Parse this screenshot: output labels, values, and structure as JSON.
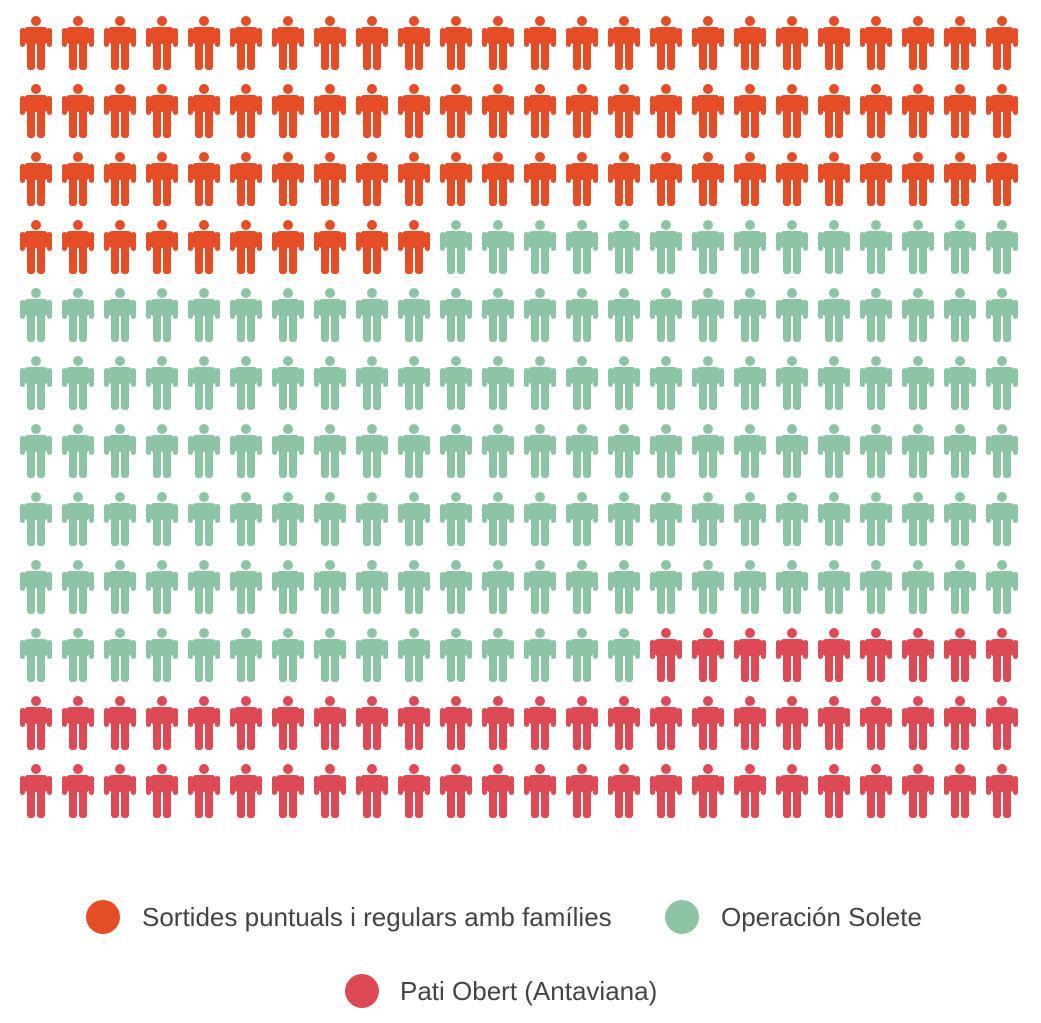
{
  "chart_data": {
    "type": "pictogram",
    "columns": 24,
    "rows": 12,
    "series": [
      {
        "name": "Sortides puntuals i regulars amb famílies",
        "value": 82,
        "color": "#e44d26"
      },
      {
        "name": "Operación Solete",
        "value": 149,
        "color": "#8ec4a6"
      },
      {
        "name": "Pati Obert (Antaviana)",
        "value": 57,
        "color": "#dd4a55"
      }
    ],
    "legend": {
      "placement": "bottom",
      "items": [
        {
          "label": "Sortides puntuals i regulars amb famílies",
          "color": "#e44d26"
        },
        {
          "label": "Operación Solete",
          "color": "#8ec4a6"
        },
        {
          "label": "Pati Obert (Antaviana)",
          "color": "#dd4a55"
        }
      ]
    }
  }
}
